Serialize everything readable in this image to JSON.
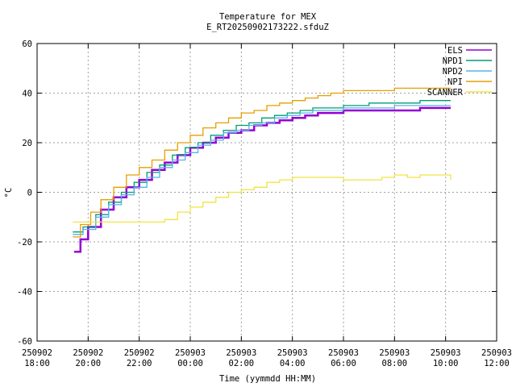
{
  "chart_data": {
    "type": "line",
    "title": "Temperature for MEX",
    "subtitle": "E_RT20250902173222.sfduZ",
    "xlabel": "Time (yymmdd HH:MM)",
    "ylabel": "°C",
    "x_ticks": [
      {
        "hour": 18,
        "date": "250902",
        "time": "18:00"
      },
      {
        "hour": 20,
        "date": "250902",
        "time": "20:00"
      },
      {
        "hour": 22,
        "date": "250902",
        "time": "22:00"
      },
      {
        "hour": 24,
        "date": "250903",
        "time": "00:00"
      },
      {
        "hour": 26,
        "date": "250903",
        "time": "02:00"
      },
      {
        "hour": 28,
        "date": "250903",
        "time": "04:00"
      },
      {
        "hour": 30,
        "date": "250903",
        "time": "06:00"
      },
      {
        "hour": 32,
        "date": "250903",
        "time": "08:00"
      },
      {
        "hour": 34,
        "date": "250903",
        "time": "10:00"
      },
      {
        "hour": 36,
        "date": "250903",
        "time": "12:00"
      }
    ],
    "y_ticks": [
      -60,
      -40,
      -20,
      0,
      20,
      40,
      60
    ],
    "xlim": [
      18,
      36
    ],
    "ylim": [
      -60,
      60
    ],
    "grid": true,
    "legend_position": "top-right",
    "series": [
      {
        "name": "ELS",
        "color": "#9400d3",
        "points": [
          [
            19.45,
            -24
          ],
          [
            19.7,
            -19
          ],
          [
            20.0,
            -14
          ],
          [
            20.5,
            -7
          ],
          [
            21.0,
            -2
          ],
          [
            21.5,
            2
          ],
          [
            22.0,
            5
          ],
          [
            22.5,
            9
          ],
          [
            23.0,
            12
          ],
          [
            23.5,
            15
          ],
          [
            24.0,
            18
          ],
          [
            24.5,
            20
          ],
          [
            25.0,
            22
          ],
          [
            25.5,
            24
          ],
          [
            26.0,
            25
          ],
          [
            26.5,
            27
          ],
          [
            27.0,
            28
          ],
          [
            27.5,
            29
          ],
          [
            28.0,
            30
          ],
          [
            28.5,
            31
          ],
          [
            29.0,
            32
          ],
          [
            29.5,
            32
          ],
          [
            30.0,
            33
          ],
          [
            31.0,
            33
          ],
          [
            32.0,
            33
          ],
          [
            33.0,
            34
          ],
          [
            34.2,
            34
          ]
        ]
      },
      {
        "name": "NPD1",
        "color": "#009e73",
        "points": [
          [
            19.4,
            -16
          ],
          [
            19.8,
            -14
          ],
          [
            20.3,
            -9
          ],
          [
            20.8,
            -4
          ],
          [
            21.3,
            0
          ],
          [
            21.8,
            4
          ],
          [
            22.3,
            8
          ],
          [
            22.8,
            11
          ],
          [
            23.3,
            15
          ],
          [
            23.8,
            18
          ],
          [
            24.3,
            20
          ],
          [
            24.8,
            23
          ],
          [
            25.3,
            25
          ],
          [
            25.8,
            27
          ],
          [
            26.3,
            28
          ],
          [
            26.8,
            30
          ],
          [
            27.3,
            31
          ],
          [
            27.8,
            32
          ],
          [
            28.3,
            33
          ],
          [
            28.8,
            34
          ],
          [
            29.3,
            34
          ],
          [
            30.0,
            35
          ],
          [
            31.0,
            36
          ],
          [
            32.0,
            36
          ],
          [
            33.0,
            37
          ],
          [
            34.2,
            37
          ]
        ]
      },
      {
        "name": "NPD2",
        "color": "#56b4e9",
        "points": [
          [
            19.4,
            -17
          ],
          [
            19.8,
            -15
          ],
          [
            20.3,
            -10
          ],
          [
            20.8,
            -5
          ],
          [
            21.3,
            -1
          ],
          [
            21.8,
            2
          ],
          [
            22.3,
            6
          ],
          [
            22.8,
            10
          ],
          [
            23.3,
            13
          ],
          [
            23.8,
            16
          ],
          [
            24.3,
            19
          ],
          [
            24.8,
            21
          ],
          [
            25.3,
            24
          ],
          [
            25.8,
            25
          ],
          [
            26.3,
            27
          ],
          [
            26.8,
            28
          ],
          [
            27.3,
            30
          ],
          [
            27.8,
            31
          ],
          [
            28.3,
            32
          ],
          [
            28.8,
            33
          ],
          [
            29.3,
            33
          ],
          [
            30.0,
            34
          ],
          [
            31.0,
            34
          ],
          [
            32.0,
            35
          ],
          [
            33.0,
            35
          ],
          [
            34.2,
            35
          ]
        ]
      },
      {
        "name": "NPI",
        "color": "#e69f00",
        "points": [
          [
            19.4,
            -18
          ],
          [
            19.7,
            -13
          ],
          [
            20.1,
            -8
          ],
          [
            20.5,
            -3
          ],
          [
            21.0,
            2
          ],
          [
            21.5,
            7
          ],
          [
            22.0,
            10
          ],
          [
            22.5,
            13
          ],
          [
            23.0,
            17
          ],
          [
            23.5,
            20
          ],
          [
            24.0,
            23
          ],
          [
            24.5,
            26
          ],
          [
            25.0,
            28
          ],
          [
            25.5,
            30
          ],
          [
            26.0,
            32
          ],
          [
            26.5,
            33
          ],
          [
            27.0,
            35
          ],
          [
            27.5,
            36
          ],
          [
            28.0,
            37
          ],
          [
            28.5,
            38
          ],
          [
            29.0,
            39
          ],
          [
            29.5,
            40
          ],
          [
            30.0,
            41
          ],
          [
            31.0,
            41
          ],
          [
            32.0,
            42
          ],
          [
            33.0,
            42
          ],
          [
            34.2,
            42
          ]
        ]
      },
      {
        "name": "SCANNER",
        "color": "#f0e442",
        "points": [
          [
            19.4,
            -12
          ],
          [
            20.0,
            -12
          ],
          [
            20.5,
            -12
          ],
          [
            21.0,
            -12
          ],
          [
            21.5,
            -12
          ],
          [
            22.0,
            -12
          ],
          [
            22.5,
            -12
          ],
          [
            23.0,
            -11
          ],
          [
            23.5,
            -8
          ],
          [
            24.0,
            -6
          ],
          [
            24.5,
            -4
          ],
          [
            25.0,
            -2
          ],
          [
            25.5,
            0
          ],
          [
            26.0,
            1
          ],
          [
            26.5,
            2
          ],
          [
            27.0,
            4
          ],
          [
            27.5,
            5
          ],
          [
            28.0,
            6
          ],
          [
            28.5,
            6
          ],
          [
            29.0,
            6
          ],
          [
            29.5,
            6
          ],
          [
            30.0,
            5
          ],
          [
            30.5,
            5
          ],
          [
            31.0,
            5
          ],
          [
            31.5,
            6
          ],
          [
            32.0,
            7
          ],
          [
            32.5,
            6
          ],
          [
            33.0,
            7
          ],
          [
            33.5,
            7
          ],
          [
            34.2,
            5
          ]
        ]
      }
    ]
  }
}
